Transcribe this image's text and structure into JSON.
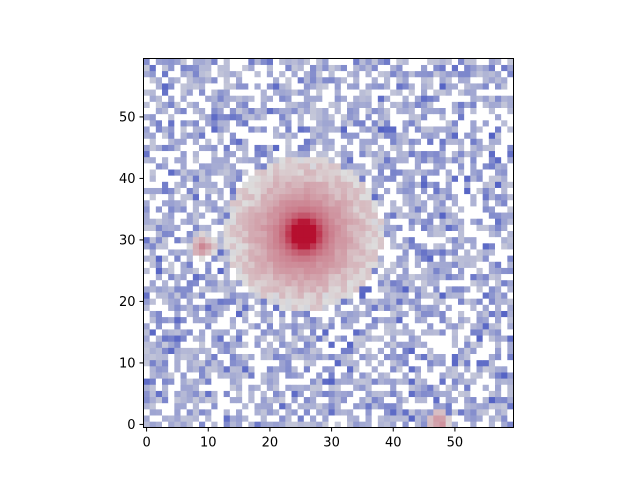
{
  "chart_data": {
    "type": "heatmap",
    "title": "",
    "xlabel": "",
    "ylabel": "",
    "colormap": "coolwarm",
    "colormap_stops": [
      "#3b4cc0",
      "#dddddd",
      "#b40426"
    ],
    "origin": "lower",
    "grid_size": [
      60,
      60
    ],
    "xlim": [
      -0.5,
      59.5
    ],
    "ylim": [
      -0.5,
      59.5
    ],
    "grid": false,
    "x_ticks": [
      0,
      10,
      20,
      30,
      40,
      50
    ],
    "y_ticks": [
      0,
      10,
      20,
      30,
      40,
      50
    ],
    "x_tick_labels": [
      "0",
      "10",
      "20",
      "30",
      "40",
      "50"
    ],
    "y_tick_labels": [
      "0",
      "10",
      "20",
      "30",
      "40",
      "50"
    ],
    "sources": [
      {
        "x": 25.5,
        "y": 31,
        "peak": 1.0,
        "sigma": 1.6,
        "halo_amp": 0.55,
        "halo_sigma": 6.5
      },
      {
        "x": 9,
        "y": 29,
        "peak": 0.4,
        "sigma": 1.1
      },
      {
        "x": 47.5,
        "y": 0.5,
        "peak": 0.45,
        "sigma": 1.0
      }
    ],
    "background_noise": {
      "mean": 0.0,
      "spread": 0.3
    }
  }
}
